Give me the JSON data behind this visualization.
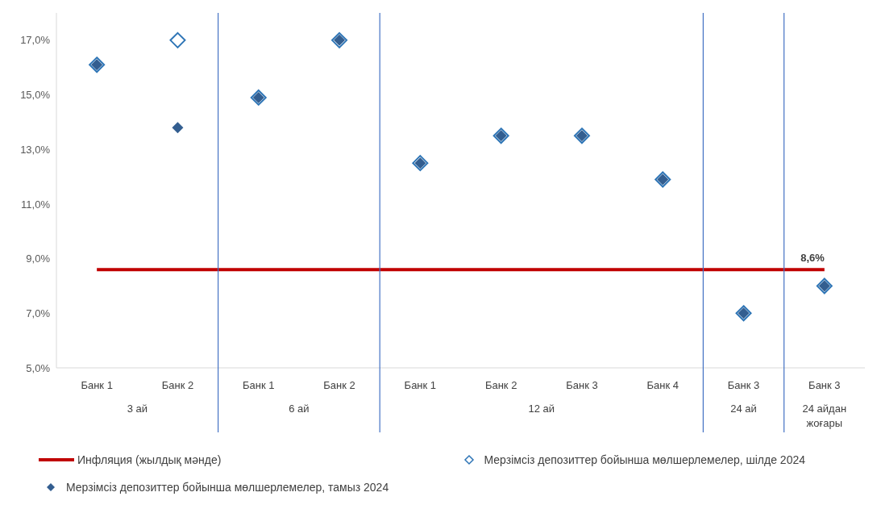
{
  "chart_data": {
    "type": "scatter",
    "categories": [
      "Банк 1",
      "Банк 2",
      "Банк 1",
      "Банк 2",
      "Банк 1",
      "Банк 2",
      "Банк 3",
      "Банк 4",
      "Банк 3",
      "Банк 3"
    ],
    "series": [
      {
        "name": "Инфляция (жылдық мәнде)",
        "type": "line",
        "color": "#c00000",
        "marker": "none",
        "values": [
          8.6,
          8.6,
          8.6,
          8.6,
          8.6,
          8.6,
          8.6,
          8.6,
          8.6,
          8.6
        ],
        "value_labels": [
          null,
          null,
          null,
          null,
          null,
          null,
          null,
          null,
          null,
          "8,6%"
        ]
      },
      {
        "name": "Мерзімсіз депозиттер бойынша мөлшерлемелер, шілде 2024",
        "color": "#2e75b6",
        "values": [
          16.1,
          17.0,
          14.9,
          17.0,
          12.5,
          13.5,
          13.5,
          11.9,
          7.0,
          8.0
        ]
      },
      {
        "name": "Мерзімсіз депозиттер бойынша мөлшерлемелер, тамыз 2024",
        "color": "#335e90",
        "values": [
          16.1,
          13.8,
          14.9,
          17.0,
          12.5,
          13.5,
          13.5,
          11.9,
          7.0,
          8.0
        ]
      }
    ],
    "annotations": [
      "3 ай",
      "6 ай",
      "12 ай",
      "24 ай",
      "24 айдан жоғары"
    ],
    "ylim": [
      5,
      18
    ],
    "yticks": [
      {
        "value": 5,
        "label": "5,0%"
      },
      {
        "value": 7,
        "label": "7,0%"
      },
      {
        "value": 9,
        "label": "9,0%"
      },
      {
        "value": 11,
        "label": "11,0%"
      },
      {
        "value": 13,
        "label": "13,0%"
      },
      {
        "value": 15,
        "label": "15,0%"
      },
      {
        "value": 17,
        "label": "17,0%"
      }
    ],
    "marker": "diamond",
    "legend": "bottom"
  }
}
